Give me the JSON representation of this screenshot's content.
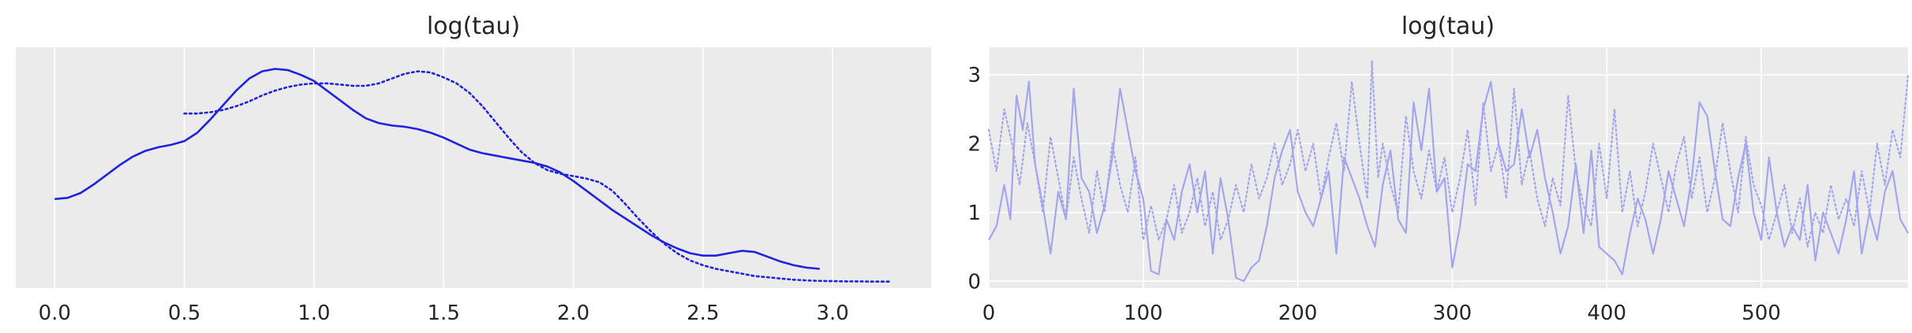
{
  "chart_data": [
    {
      "type": "line",
      "title": "log(tau)",
      "xlabel": "",
      "ylabel": "",
      "xlim": [
        -0.15,
        3.38
      ],
      "xticks": [
        "0.0",
        "0.5",
        "1.0",
        "1.5",
        "2.0",
        "2.5",
        "3.0"
      ],
      "yticks": [],
      "grid": true,
      "background": "#ebebeb",
      "line_color": "#1f23e0",
      "series": [
        {
          "style": "solid",
          "x": [
            0.0,
            0.05,
            0.1,
            0.15,
            0.2,
            0.25,
            0.3,
            0.35,
            0.4,
            0.45,
            0.5,
            0.55,
            0.6,
            0.65,
            0.7,
            0.75,
            0.8,
            0.85,
            0.9,
            0.95,
            1.0,
            1.05,
            1.1,
            1.15,
            1.2,
            1.25,
            1.3,
            1.35,
            1.4,
            1.45,
            1.5,
            1.55,
            1.6,
            1.65,
            1.7,
            1.75,
            1.8,
            1.85,
            1.9,
            1.95,
            2.0,
            2.05,
            2.1,
            2.15,
            2.2,
            2.25,
            2.3,
            2.35,
            2.4,
            2.45,
            2.5,
            2.55,
            2.6,
            2.65,
            2.7,
            2.75,
            2.8,
            2.85,
            2.9,
            2.95
          ],
          "y": [
            0.37,
            0.375,
            0.395,
            0.43,
            0.47,
            0.51,
            0.545,
            0.57,
            0.585,
            0.595,
            0.61,
            0.645,
            0.7,
            0.76,
            0.82,
            0.87,
            0.9,
            0.91,
            0.905,
            0.885,
            0.86,
            0.82,
            0.78,
            0.74,
            0.705,
            0.685,
            0.675,
            0.67,
            0.66,
            0.645,
            0.625,
            0.6,
            0.575,
            0.56,
            0.55,
            0.54,
            0.53,
            0.52,
            0.505,
            0.48,
            0.445,
            0.405,
            0.365,
            0.325,
            0.29,
            0.255,
            0.22,
            0.19,
            0.165,
            0.145,
            0.135,
            0.135,
            0.145,
            0.155,
            0.15,
            0.13,
            0.11,
            0.095,
            0.085,
            0.08
          ]
        },
        {
          "style": "dotted",
          "x": [
            0.5,
            0.55,
            0.6,
            0.65,
            0.7,
            0.75,
            0.8,
            0.85,
            0.9,
            0.95,
            1.0,
            1.05,
            1.1,
            1.15,
            1.2,
            1.25,
            1.3,
            1.35,
            1.4,
            1.45,
            1.5,
            1.55,
            1.6,
            1.65,
            1.7,
            1.75,
            1.8,
            1.85,
            1.9,
            1.95,
            2.0,
            2.05,
            2.1,
            2.15,
            2.2,
            2.25,
            2.3,
            2.35,
            2.4,
            2.45,
            2.5,
            2.55,
            2.6,
            2.65,
            2.7,
            2.75,
            2.8,
            2.85,
            2.9,
            2.95,
            3.0,
            3.05,
            3.1,
            3.15,
            3.2,
            3.22
          ],
          "y": [
            0.725,
            0.725,
            0.73,
            0.74,
            0.755,
            0.775,
            0.8,
            0.82,
            0.835,
            0.845,
            0.85,
            0.85,
            0.845,
            0.84,
            0.84,
            0.85,
            0.87,
            0.89,
            0.9,
            0.895,
            0.875,
            0.85,
            0.81,
            0.755,
            0.69,
            0.625,
            0.565,
            0.52,
            0.49,
            0.475,
            0.465,
            0.455,
            0.44,
            0.405,
            0.35,
            0.29,
            0.235,
            0.185,
            0.145,
            0.115,
            0.095,
            0.08,
            0.07,
            0.06,
            0.05,
            0.045,
            0.04,
            0.035,
            0.032,
            0.03,
            0.029,
            0.028,
            0.028,
            0.027,
            0.027,
            0.027
          ]
        }
      ]
    },
    {
      "type": "line",
      "title": "log(tau)",
      "xlabel": "",
      "ylabel": "",
      "xlim": [
        0,
        595
      ],
      "ylim": [
        -0.1,
        3.4
      ],
      "xticks": [
        "0",
        "100",
        "200",
        "300",
        "400",
        "500"
      ],
      "yticks": [
        "0",
        "1",
        "2",
        "3"
      ],
      "grid": true,
      "background": "#ebebeb",
      "line_color": "#a3a6ef",
      "series": [
        {
          "style": "solid",
          "x": [
            0,
            5,
            10,
            14,
            18,
            22,
            26,
            30,
            35,
            40,
            45,
            50,
            55,
            60,
            65,
            70,
            75,
            80,
            85,
            90,
            95,
            100,
            105,
            110,
            115,
            120,
            125,
            130,
            135,
            140,
            145,
            150,
            155,
            160,
            165,
            170,
            175,
            180,
            185,
            190,
            195,
            200,
            205,
            210,
            215,
            220,
            225,
            230,
            235,
            240,
            245,
            250,
            255,
            260,
            265,
            270,
            275,
            280,
            285,
            290,
            295,
            300,
            305,
            310,
            315,
            320,
            325,
            330,
            335,
            340,
            345,
            350,
            355,
            360,
            365,
            370,
            375,
            380,
            385,
            390,
            395,
            400,
            405,
            410,
            415,
            420,
            425,
            430,
            435,
            440,
            445,
            450,
            455,
            460,
            465,
            470,
            475,
            480,
            485,
            490,
            495,
            500,
            505,
            510,
            515,
            520,
            525,
            530,
            535,
            540,
            545,
            550,
            555,
            560,
            565,
            570,
            575,
            580,
            585,
            590,
            595
          ],
          "y": [
            0.6,
            0.8,
            1.4,
            0.9,
            2.7,
            2.2,
            2.9,
            1.7,
            1.1,
            0.4,
            1.3,
            0.9,
            2.8,
            1.5,
            1.3,
            0.7,
            1.1,
            1.8,
            2.8,
            2.2,
            1.6,
            1.2,
            0.15,
            0.1,
            0.9,
            0.6,
            1.3,
            1.7,
            1.0,
            1.6,
            0.4,
            1.5,
            0.9,
            0.05,
            0.0,
            0.2,
            0.3,
            0.8,
            1.5,
            1.9,
            2.2,
            1.3,
            1.0,
            0.8,
            1.2,
            1.6,
            0.4,
            1.8,
            1.5,
            1.2,
            0.8,
            0.5,
            1.4,
            1.9,
            0.9,
            0.7,
            2.6,
            1.9,
            2.8,
            1.3,
            1.5,
            0.2,
            0.8,
            1.7,
            1.6,
            2.5,
            2.9,
            2.0,
            1.6,
            1.7,
            2.5,
            1.8,
            2.2,
            1.5,
            1.0,
            0.4,
            0.8,
            1.7,
            0.7,
            1.9,
            0.5,
            0.4,
            0.3,
            0.1,
            0.7,
            1.2,
            0.9,
            0.4,
            0.9,
            1.6,
            1.2,
            0.8,
            1.5,
            2.6,
            2.4,
            1.6,
            0.9,
            0.8,
            1.5,
            2.0,
            1.0,
            0.6,
            1.8,
            1.0,
            0.5,
            0.8,
            0.6,
            1.4,
            0.3,
            1.0,
            0.7,
            0.4,
            0.9,
            1.6,
            0.4,
            1.0,
            0.6,
            1.3,
            1.6,
            0.9,
            0.7
          ]
        },
        {
          "style": "dotted",
          "x": [
            0,
            5,
            10,
            15,
            20,
            25,
            30,
            35,
            40,
            45,
            50,
            55,
            60,
            65,
            70,
            75,
            80,
            85,
            90,
            95,
            100,
            105,
            110,
            115,
            120,
            125,
            130,
            135,
            140,
            145,
            150,
            155,
            160,
            165,
            170,
            175,
            180,
            185,
            190,
            195,
            200,
            205,
            210,
            215,
            220,
            225,
            230,
            235,
            240,
            245,
            248,
            252,
            255,
            260,
            265,
            270,
            275,
            280,
            285,
            290,
            295,
            300,
            305,
            310,
            315,
            320,
            325,
            330,
            335,
            340,
            345,
            350,
            355,
            360,
            365,
            370,
            375,
            380,
            385,
            390,
            395,
            400,
            405,
            410,
            415,
            420,
            425,
            430,
            435,
            440,
            445,
            450,
            455,
            460,
            465,
            470,
            475,
            480,
            485,
            490,
            495,
            500,
            505,
            510,
            515,
            520,
            525,
            530,
            535,
            540,
            545,
            550,
            555,
            560,
            565,
            570,
            575,
            580,
            585,
            590,
            595
          ],
          "y": [
            2.2,
            1.6,
            2.5,
            2.0,
            1.4,
            2.3,
            1.7,
            1.0,
            2.1,
            1.5,
            0.9,
            1.8,
            1.2,
            0.7,
            1.6,
            1.0,
            2.0,
            1.4,
            1.0,
            1.8,
            0.6,
            1.1,
            0.6,
            0.9,
            1.4,
            0.7,
            1.0,
            1.5,
            0.8,
            1.3,
            0.6,
            0.9,
            1.4,
            1.0,
            1.7,
            1.2,
            1.5,
            2.0,
            1.4,
            1.7,
            2.2,
            1.6,
            2.0,
            1.2,
            1.8,
            2.3,
            1.6,
            2.9,
            2.0,
            1.2,
            3.2,
            1.5,
            2.0,
            1.4,
            1.0,
            2.4,
            1.6,
            1.2,
            1.9,
            1.3,
            1.8,
            1.0,
            1.5,
            2.2,
            1.1,
            2.6,
            1.6,
            2.0,
            1.2,
            2.8,
            1.4,
            1.9,
            1.2,
            0.8,
            1.5,
            1.1,
            2.7,
            1.6,
            1.1,
            0.8,
            2.0,
            1.2,
            2.5,
            1.0,
            1.6,
            0.8,
            1.3,
            2.0,
            1.5,
            1.0,
            1.7,
            2.1,
            1.2,
            1.8,
            1.0,
            1.5,
            2.3,
            1.6,
            1.0,
            2.1,
            1.4,
            1.1,
            0.6,
            1.0,
            1.4,
            0.7,
            1.2,
            0.5,
            1.0,
            0.7,
            1.4,
            0.9,
            1.2,
            0.8,
            1.6,
            1.0,
            2.0,
            1.4,
            2.2,
            1.8,
            3.0
          ]
        }
      ]
    }
  ]
}
